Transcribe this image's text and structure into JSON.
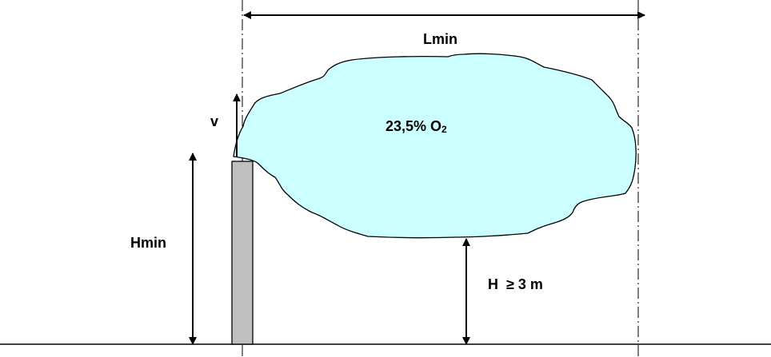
{
  "labels": {
    "lmin": "Lmin",
    "v": "v",
    "concentration_value": "23,5% O",
    "concentration_subscript": "2",
    "hmin": "Hmin",
    "h_min_clearance": "H  ≥ 3 m"
  },
  "colors": {
    "cloud_fill": "#ccffff",
    "pipe_fill": "#c0c0c0",
    "line": "#000000",
    "background": "#ffffff"
  }
}
